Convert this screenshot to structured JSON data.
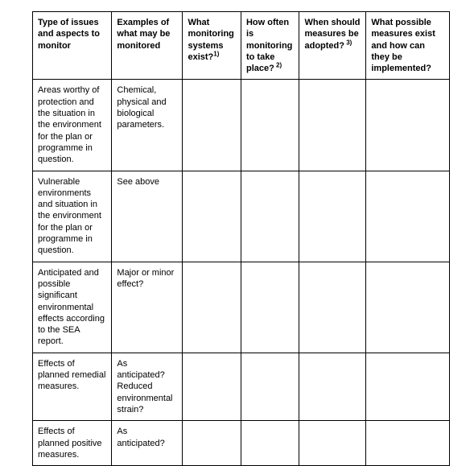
{
  "table": {
    "columns": [
      {
        "text": "Type of issues and aspects to monitor",
        "sup": ""
      },
      {
        "text": "Examples of what may be monitored",
        "sup": ""
      },
      {
        "text": "What monitoring systems exist?",
        "sup": "1)"
      },
      {
        "text": "How often is monitoring to take place?",
        "sup": " 2)"
      },
      {
        "text": "When should measures be adopted?",
        "sup": " 3)"
      },
      {
        "text": "What possible measures exist and how can they be implemented?",
        "sup": ""
      }
    ],
    "rows": [
      {
        "c1": "Areas worthy of protection and the situation in the environment for the plan or programme in question.",
        "c2": "Chemical, physical and biological parameters.",
        "c3": "",
        "c4": "",
        "c5": "",
        "c6": ""
      },
      {
        "c1": "Vulnerable environments and situation in the environment for the plan or programme in question.",
        "c2": "See above",
        "c3": "",
        "c4": "",
        "c5": "",
        "c6": ""
      },
      {
        "c1": "Anticipated and possible significant environmental effects according to the SEA report.",
        "c2": "Major or minor effect?",
        "c3": "",
        "c4": "",
        "c5": "",
        "c6": ""
      },
      {
        "c1": "Effects of planned remedial measures.",
        "c2": "As anticipated? Reduced environmental strain?",
        "c3": "",
        "c4": "",
        "c5": "",
        "c6": ""
      },
      {
        "c1": "Effects of planned positive measures.",
        "c2": "As anticipated?",
        "c3": "",
        "c4": "",
        "c5": "",
        "c6": ""
      }
    ]
  }
}
